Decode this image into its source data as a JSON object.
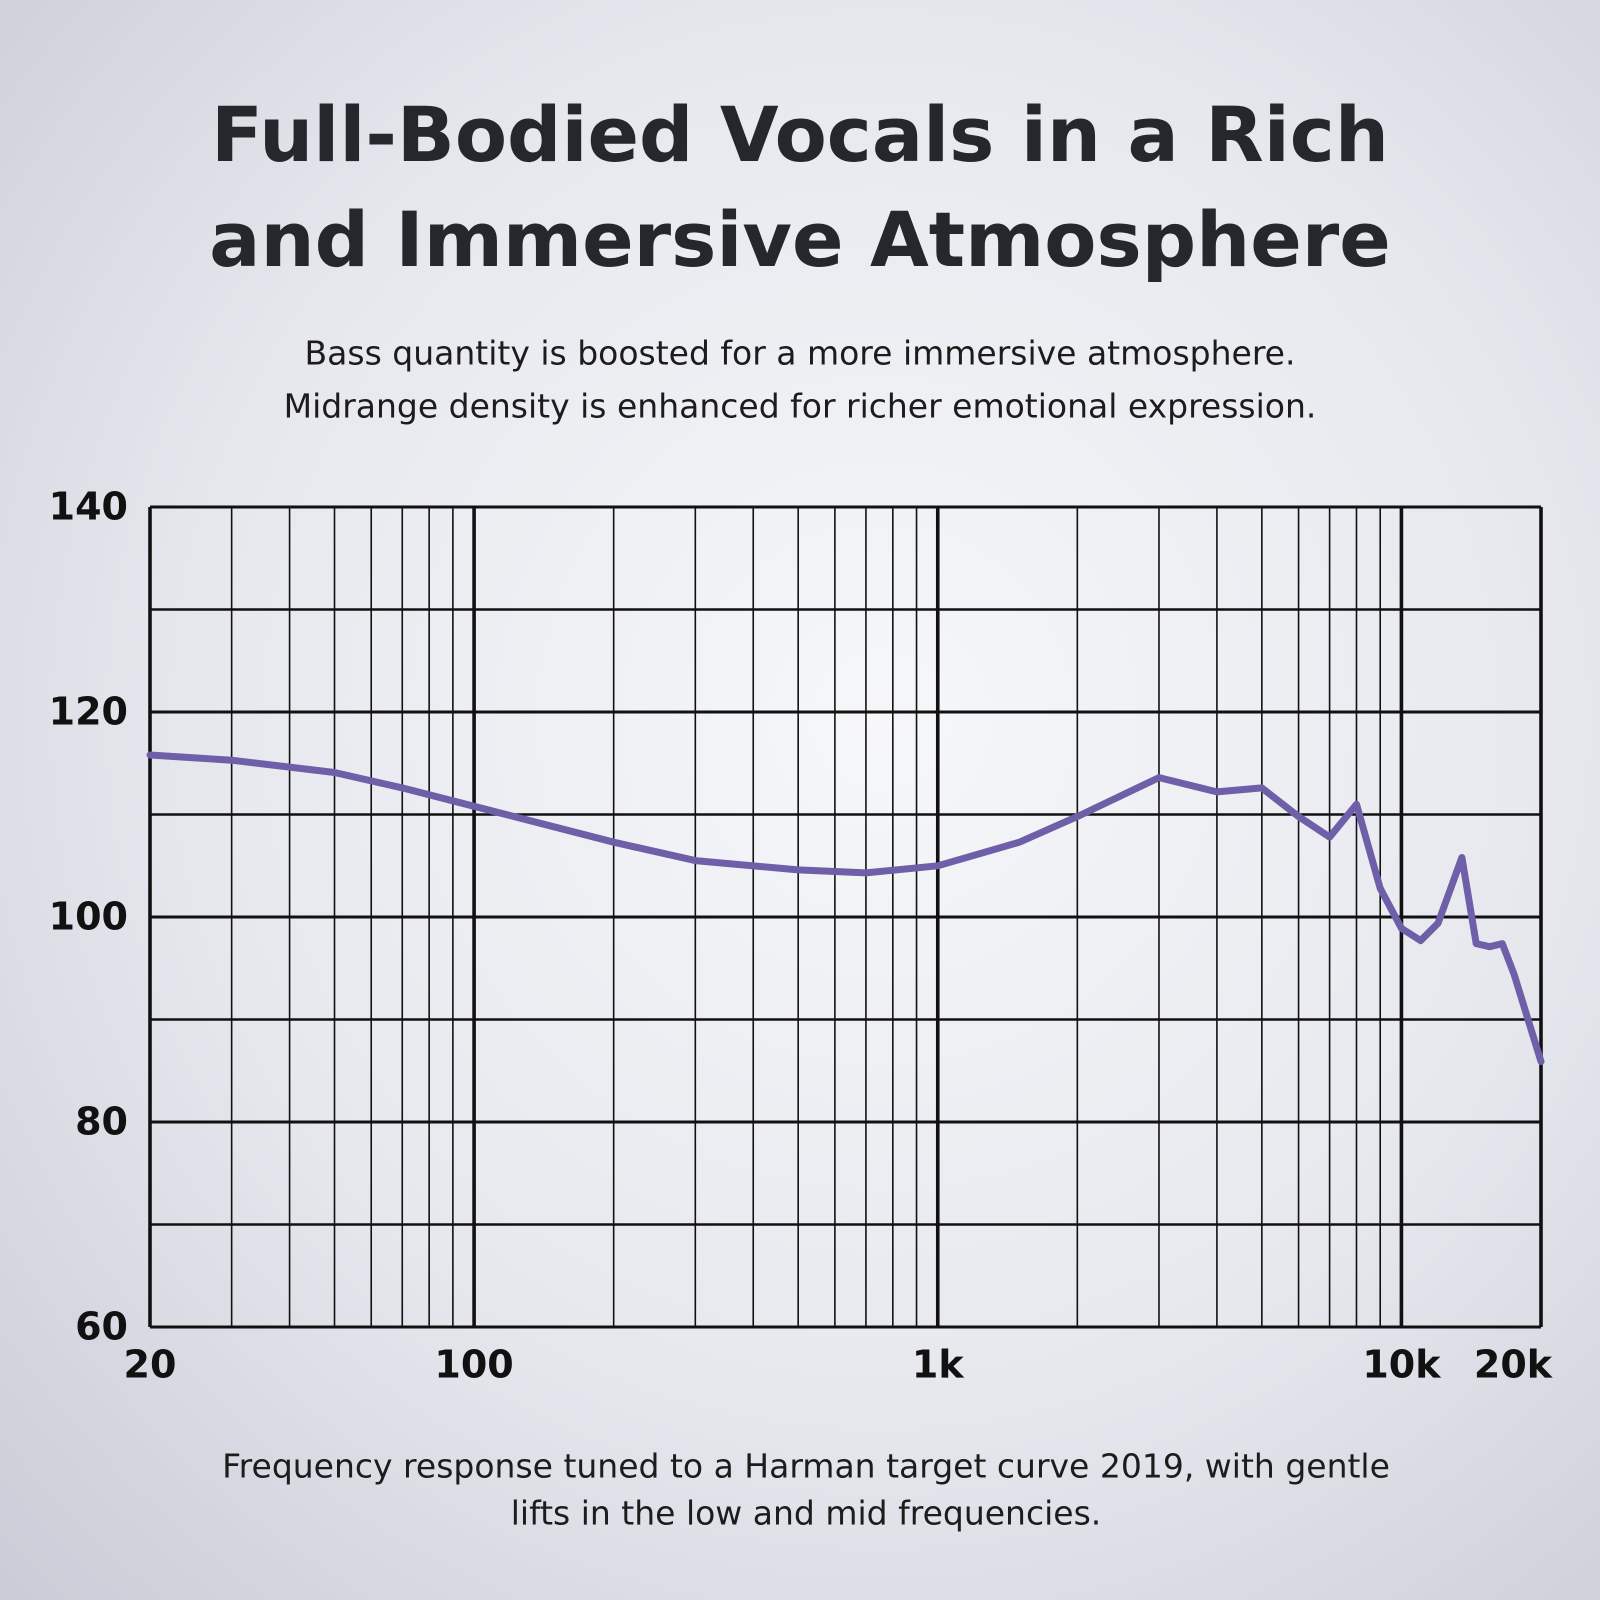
{
  "chart_data": {
    "type": "line",
    "title": [
      "Full-Bodied Vocals in a Rich",
      "and Immersive Atmosphere"
    ],
    "subtitle": [
      "Bass quantity is boosted for a more immersive atmosphere.",
      "Midrange density is enhanced for richer emotional expression."
    ],
    "footnote": [
      "Frequency response tuned to a Harman target curve 2019, with gentle",
      "lifts in the low and mid frequencies."
    ],
    "xlog": true,
    "xlim": [
      20,
      20000
    ],
    "xticks": [
      20,
      100,
      {
        "value": 1000,
        "label": "1k"
      },
      {
        "value": 10000,
        "label": "10k"
      },
      {
        "value": 20000,
        "label": "20k"
      }
    ],
    "xminorticks": [
      30,
      40,
      50,
      60,
      70,
      80,
      90,
      200,
      300,
      400,
      500,
      600,
      700,
      800,
      900,
      2000,
      3000,
      4000,
      5000,
      6000,
      7000,
      8000,
      9000
    ],
    "ylim": [
      60,
      140
    ],
    "yticks": [
      60,
      80,
      100,
      120,
      140
    ],
    "yminorticks": [
      70,
      90,
      110,
      130
    ],
    "grid": true,
    "series": [
      {
        "color": "#6e5fa8",
        "x": [
          20,
          30,
          50,
          70,
          100,
          200,
          300,
          500,
          700,
          1000,
          1500,
          2000,
          3000,
          4000,
          5000,
          6000,
          7000,
          8000,
          9000,
          10000,
          11000,
          12000,
          13500,
          14500,
          15500,
          16500,
          17500,
          20000
        ],
        "values": [
          115.8,
          115.3,
          114.1,
          112.6,
          110.8,
          107.3,
          105.5,
          104.6,
          104.3,
          105.0,
          107.3,
          109.8,
          113.6,
          112.2,
          112.6,
          109.8,
          107.8,
          111.0,
          102.8,
          98.9,
          97.7,
          99.4,
          105.8,
          97.4,
          97.1,
          97.4,
          94.4,
          85.9
        ]
      }
    ]
  }
}
